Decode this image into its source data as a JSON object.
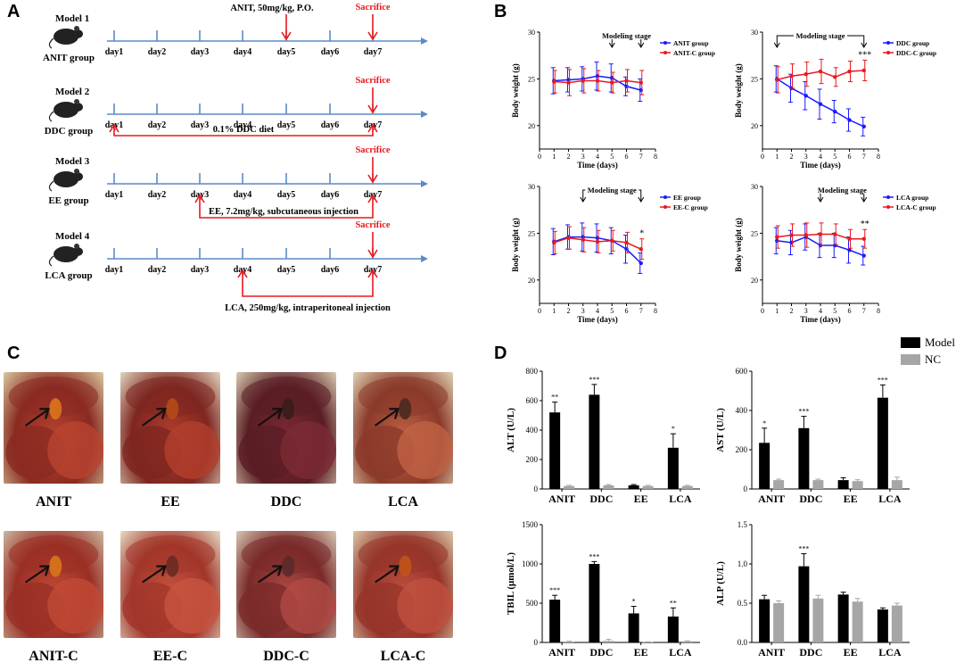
{
  "panels": {
    "a": "A",
    "b": "B",
    "c": "C",
    "d": "D"
  },
  "timeline_days": [
    "day1",
    "day2",
    "day3",
    "day4",
    "day5",
    "day6",
    "day7"
  ],
  "models": [
    {
      "model": "Model 1",
      "group": "ANIT group",
      "top_note": "ANIT, 50mg/kg, P.O.",
      "sacrifice": "Sacrifice",
      "bottom_note": ""
    },
    {
      "model": "Model 2",
      "group": "DDC group",
      "top_note": "",
      "sacrifice": "Sacrifice",
      "bottom_note": "0.1% DDC diet"
    },
    {
      "model": "Model 3",
      "group": "EE group",
      "top_note": "",
      "sacrifice": "Sacrifice",
      "bottom_note": "EE, 7.2mg/kg, subcutaneous injection"
    },
    {
      "model": "Model 4",
      "group": "LCA group",
      "top_note": "",
      "sacrifice": "Sacrifice",
      "bottom_note": "LCA, 250mg/kg, intraperitoneal injection"
    }
  ],
  "photos": {
    "top": [
      "ANIT",
      "EE",
      "DDC",
      "LCA"
    ],
    "bottom": [
      "ANIT-C",
      "EE-C",
      "DDC-C",
      "LCA-C"
    ]
  },
  "colors": {
    "blue": "#1a1aff",
    "red": "#e8191e",
    "timeline": "#5b8ac6",
    "model_bar": "#000000",
    "nc_bar": "#a6a6a6"
  },
  "chart_data": [
    {
      "id": "bw-anit",
      "type": "line",
      "title": "Modeling stage",
      "xlabel": "Time (days)",
      "ylabel": "Body weight (g)",
      "x": [
        1,
        2,
        3,
        4,
        5,
        6,
        7
      ],
      "xticks": [
        0,
        1,
        2,
        3,
        4,
        5,
        6,
        7,
        8
      ],
      "yticks": [
        20,
        25,
        30
      ],
      "xlim": [
        0,
        8
      ],
      "ylim": [
        17.5,
        30
      ],
      "stage": [
        5,
        7
      ],
      "significance": "",
      "legend": [
        "ANIT group",
        "ANIT-C group"
      ],
      "series": [
        {
          "name": "ANIT group",
          "color": "blue",
          "values": [
            24.8,
            24.9,
            25.0,
            25.3,
            25.1,
            24.2,
            23.8
          ],
          "errors": [
            1.4,
            1.3,
            1.3,
            1.5,
            1.5,
            1.0,
            1.2
          ]
        },
        {
          "name": "ANIT-C group",
          "color": "red",
          "values": [
            24.7,
            24.6,
            24.8,
            24.8,
            24.6,
            24.8,
            24.6
          ],
          "errors": [
            1.2,
            1.4,
            1.3,
            1.1,
            1.1,
            1.2,
            1.3
          ]
        }
      ]
    },
    {
      "id": "bw-ddc",
      "type": "line",
      "title": "Modeling stage",
      "xlabel": "Time (days)",
      "ylabel": "Body weight (g)",
      "x": [
        1,
        2,
        3,
        4,
        5,
        6,
        7
      ],
      "xticks": [
        0,
        1,
        2,
        3,
        4,
        5,
        6,
        7,
        8
      ],
      "yticks": [
        20,
        25,
        30
      ],
      "xlim": [
        0,
        8
      ],
      "ylim": [
        17.5,
        30
      ],
      "stage": [
        1,
        7
      ],
      "significance": "***",
      "legend": [
        "DDC group",
        "DDC-C group"
      ],
      "series": [
        {
          "name": "DDC group",
          "color": "blue",
          "values": [
            25.0,
            24.0,
            23.2,
            22.3,
            21.5,
            20.6,
            19.9
          ],
          "errors": [
            1.4,
            1.5,
            1.5,
            1.6,
            1.2,
            1.2,
            1.0
          ]
        },
        {
          "name": "DDC-C group",
          "color": "red",
          "values": [
            24.9,
            25.3,
            25.5,
            25.8,
            25.2,
            25.8,
            25.9
          ],
          "errors": [
            1.4,
            1.3,
            1.3,
            1.3,
            1.0,
            1.1,
            1.1
          ]
        }
      ]
    },
    {
      "id": "bw-ee",
      "type": "line",
      "title": "Modeling stage",
      "xlabel": "Time (days)",
      "ylabel": "Body weight (g)",
      "x": [
        1,
        2,
        3,
        4,
        5,
        6,
        7
      ],
      "xticks": [
        0,
        1,
        2,
        3,
        4,
        5,
        6,
        7,
        8
      ],
      "yticks": [
        20,
        25,
        30
      ],
      "xlim": [
        0,
        8
      ],
      "ylim": [
        17.5,
        30
      ],
      "stage": [
        3,
        7
      ],
      "significance": "*",
      "legend": [
        "EE group",
        "EE-C group"
      ],
      "series": [
        {
          "name": "EE group",
          "color": "blue",
          "values": [
            24.1,
            24.6,
            24.6,
            24.5,
            24.2,
            23.3,
            21.8
          ],
          "errors": [
            1.4,
            1.3,
            1.5,
            1.5,
            1.4,
            1.5,
            1.1
          ]
        },
        {
          "name": "EE-C group",
          "color": "red",
          "values": [
            24.0,
            24.5,
            24.3,
            24.1,
            24.2,
            24.0,
            23.3
          ],
          "errors": [
            1.2,
            1.2,
            1.3,
            1.2,
            1.1,
            1.1,
            1.1
          ]
        }
      ]
    },
    {
      "id": "bw-lca",
      "type": "line",
      "title": "Modeling stage",
      "xlabel": "Time (days)",
      "ylabel": "Body weight (g)",
      "x": [
        1,
        2,
        3,
        4,
        5,
        6,
        7
      ],
      "xticks": [
        0,
        1,
        2,
        3,
        4,
        5,
        6,
        7,
        8
      ],
      "yticks": [
        20,
        25,
        30
      ],
      "xlim": [
        0,
        8
      ],
      "ylim": [
        17.5,
        30
      ],
      "stage": [
        4,
        7
      ],
      "significance": "**",
      "legend": [
        "LCA group",
        "LCA-C group"
      ],
      "series": [
        {
          "name": "LCA group",
          "color": "blue",
          "values": [
            24.2,
            24.0,
            24.6,
            23.7,
            23.7,
            23.2,
            22.6
          ],
          "errors": [
            1.4,
            1.3,
            1.4,
            1.3,
            1.3,
            1.4,
            1.0
          ]
        },
        {
          "name": "LCA-C group",
          "color": "red",
          "values": [
            24.6,
            24.8,
            24.8,
            24.9,
            24.9,
            24.4,
            24.4
          ],
          "errors": [
            1.2,
            1.2,
            1.3,
            1.2,
            1.1,
            1.0,
            1.0
          ]
        }
      ]
    },
    {
      "id": "alt",
      "type": "bar",
      "ylabel": "ALT (U/L)",
      "categories": [
        "ANIT",
        "DDC",
        "EE",
        "LCA"
      ],
      "yticks": [
        0,
        200,
        400,
        600,
        800
      ],
      "ylim": [
        0,
        800
      ],
      "significance": [
        "**",
        "***",
        "",
        "*"
      ],
      "series": [
        {
          "name": "Model",
          "color": "model_bar",
          "values": [
            520,
            640,
            25,
            280
          ],
          "errors": [
            70,
            70,
            5,
            95
          ]
        },
        {
          "name": "NC",
          "color": "nc_bar",
          "values": [
            20,
            25,
            20,
            20
          ],
          "errors": [
            5,
            5,
            5,
            5
          ]
        }
      ]
    },
    {
      "id": "ast",
      "type": "bar",
      "ylabel": "AST (U/L)",
      "categories": [
        "ANIT",
        "DDC",
        "EE",
        "LCA"
      ],
      "yticks": [
        0,
        200,
        400,
        600
      ],
      "ylim": [
        0,
        600
      ],
      "significance": [
        "*",
        "***",
        "",
        "***"
      ],
      "series": [
        {
          "name": "Model",
          "color": "model_bar",
          "values": [
            235,
            310,
            45,
            465
          ],
          "errors": [
            75,
            60,
            12,
            65
          ]
        },
        {
          "name": "NC",
          "color": "nc_bar",
          "values": [
            45,
            45,
            40,
            45
          ],
          "errors": [
            5,
            5,
            7,
            15
          ]
        }
      ]
    },
    {
      "id": "tbil",
      "type": "bar",
      "ylabel": "TBIL (μmol/L)",
      "categories": [
        "ANIT",
        "DDC",
        "EE",
        "LCA"
      ],
      "yticks": [
        0,
        500,
        1000,
        1500
      ],
      "ylim": [
        0,
        1500
      ],
      "significance": [
        "***",
        "***",
        "*",
        "**"
      ],
      "series": [
        {
          "name": "Model",
          "color": "model_bar",
          "values": [
            545,
            1000,
            370,
            330
          ],
          "errors": [
            55,
            30,
            90,
            110
          ]
        },
        {
          "name": "NC",
          "color": "nc_bar",
          "values": [
            10,
            20,
            5,
            15
          ],
          "errors": [
            5,
            20,
            3,
            5
          ]
        }
      ]
    },
    {
      "id": "alp",
      "type": "bar",
      "ylabel": "ALP (U/L)",
      "categories": [
        "ANIT",
        "DDC",
        "EE",
        "LCA"
      ],
      "yticks": [
        0.0,
        0.5,
        1.0,
        1.5
      ],
      "ylim": [
        0,
        1.5
      ],
      "significance": [
        "",
        "***",
        "",
        ""
      ],
      "series": [
        {
          "name": "Model",
          "color": "model_bar",
          "values": [
            0.55,
            0.97,
            0.61,
            0.42
          ],
          "errors": [
            0.05,
            0.16,
            0.03,
            0.02
          ]
        },
        {
          "name": "NC",
          "color": "nc_bar",
          "values": [
            0.5,
            0.56,
            0.52,
            0.47
          ],
          "errors": [
            0.03,
            0.04,
            0.04,
            0.03
          ]
        }
      ]
    }
  ],
  "bar_legend": [
    "Model",
    "NC"
  ]
}
